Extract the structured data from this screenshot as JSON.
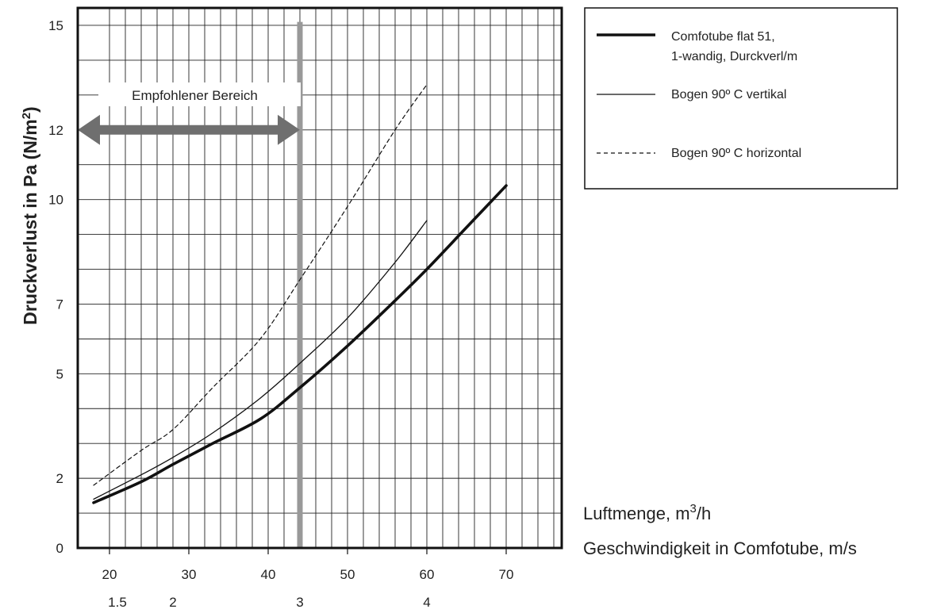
{
  "chart_data": {
    "type": "line",
    "ylabel": "Druckverlust in Pa (N/m²)",
    "ylabel_main": "Druckverlust in Pa (N/m",
    "ylabel_sup": "2",
    "ylabel_close": ")",
    "xlabel_main": "Luftmenge, m",
    "xlabel_sup": "3",
    "xlabel_tail": "/h",
    "xlabel2": "Geschwindigkeit in Comfotube, m/s",
    "y_ticks": [
      0,
      2,
      5,
      7,
      10,
      12,
      15
    ],
    "x_ticks": [
      20,
      30,
      40,
      50,
      60,
      70
    ],
    "x2_ticks": [
      {
        "label": "1.5",
        "x": 21
      },
      {
        "label": "2",
        "x": 28
      },
      {
        "label": "3",
        "x": 44
      },
      {
        "label": "4",
        "x": 60
      }
    ],
    "xlim": [
      16,
      77
    ],
    "ylim": [
      0,
      15.5
    ],
    "grid": true,
    "legend_position": "right",
    "series": [
      {
        "name": "Comfotube flat 51, 1-wandig, Durckverl/m",
        "name_line1": "Comfotube flat 51,",
        "name_line2": "1-wandig, Durckverl/m",
        "style": "thick",
        "x": [
          18,
          24,
          28,
          33,
          39,
          44,
          50,
          56,
          60,
          65,
          70
        ],
        "y": [
          1.3,
          1.9,
          2.4,
          3.0,
          3.7,
          4.6,
          5.8,
          7.1,
          8.0,
          9.2,
          10.4
        ]
      },
      {
        "name": "Bogen 90º C vertikal",
        "style": "thin",
        "x": [
          18,
          24,
          28,
          33,
          39,
          44,
          50,
          56,
          60
        ],
        "y": [
          1.4,
          2.1,
          2.6,
          3.3,
          4.3,
          5.3,
          6.6,
          8.2,
          9.4
        ]
      },
      {
        "name": "Bogen 90º C horizontal",
        "style": "dashed",
        "x": [
          18,
          24,
          28,
          33,
          39,
          44,
          50,
          56,
          60
        ],
        "y": [
          1.8,
          2.8,
          3.4,
          4.6,
          6.0,
          7.7,
          9.8,
          12.0,
          13.3
        ]
      }
    ],
    "annotations": {
      "range_label": "Empfohlener Bereich",
      "range_from": 16,
      "range_to": 44,
      "range_y": 12,
      "marker_x": 44
    }
  }
}
